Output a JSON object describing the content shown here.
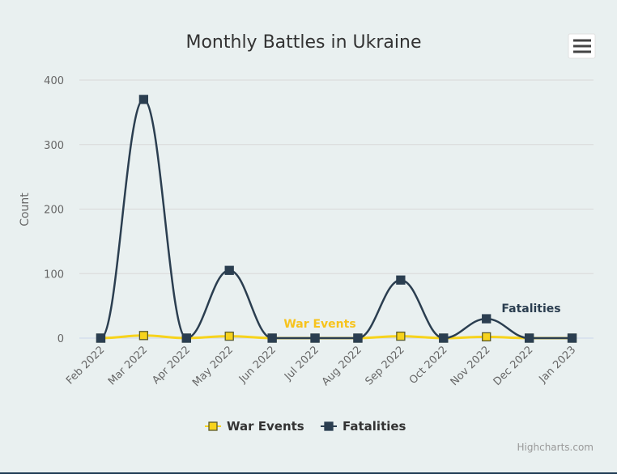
{
  "chart_data": {
    "type": "line",
    "title": "Monthly Battles in Ukraine",
    "xlabel": "",
    "ylabel": "Count",
    "categories": [
      "Feb 2022",
      "Mar 2022",
      "Apr 2022",
      "May 2022",
      "Jun 2022",
      "Jul 2022",
      "Aug 2022",
      "Sep 2022",
      "Oct 2022",
      "Nov 2022",
      "Dec 2022",
      "Jan 2023"
    ],
    "yticks": [
      0,
      100,
      200,
      300,
      400
    ],
    "ylim": [
      0,
      400
    ],
    "grid": true,
    "legend_position": "bottom-center",
    "series": [
      {
        "name": "War Events",
        "color": "#f7d31c",
        "marker_fill": "#f7d31c",
        "marker_stroke": "#5a5a2a",
        "values": [
          0,
          4,
          0,
          3,
          0,
          0,
          0,
          3,
          0,
          2,
          0,
          0
        ],
        "inline_label": "War Events",
        "label_color": "#f7c31c"
      },
      {
        "name": "Fatalities",
        "color": "#2b3e50",
        "marker_fill": "#2b3e50",
        "marker_stroke": "#2b3e50",
        "values": [
          0,
          370,
          0,
          105,
          0,
          0,
          0,
          90,
          0,
          30,
          0,
          0
        ],
        "inline_label": "Fatalities",
        "label_color": "#2b3e50"
      }
    ]
  },
  "credits": "Highcharts.com",
  "menu_icon": "hamburger-menu-icon"
}
